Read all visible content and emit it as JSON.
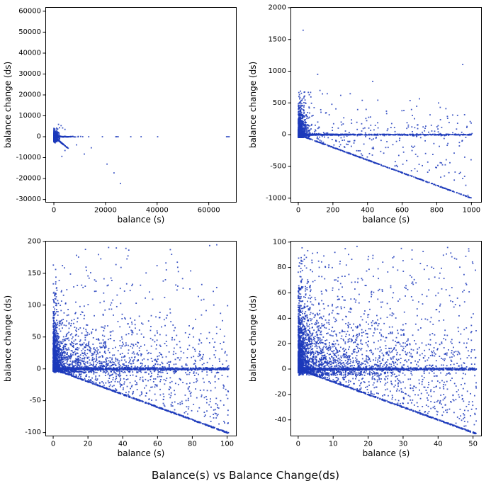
{
  "figure": {
    "suptitle": "Balance(s) vs Balance Change(ds)",
    "background": "#ffffff",
    "point_color": "#1c39bb",
    "axis_color": "#000000"
  },
  "chart_data": [
    {
      "id": "top-left",
      "type": "scatter",
      "title": "",
      "xlabel": "balance (s)",
      "ylabel": "balance change (ds)",
      "xlim": [
        -3300,
        70800
      ],
      "ylim": [
        -31500,
        62000
      ],
      "xticks": [
        0,
        20000,
        40000,
        60000
      ],
      "xtick_labels": [
        "0",
        "20000",
        "40000",
        "60000"
      ],
      "yticks": [
        -30000,
        -20000,
        -10000,
        0,
        10000,
        20000,
        30000,
        40000,
        50000,
        60000
      ],
      "ytick_labels": [
        "-30000",
        "-20000",
        "-10000",
        "0",
        "10000",
        "20000",
        "30000",
        "40000",
        "50000",
        "60000"
      ],
      "summary": "dense blob near origin; horizontal band at y=0 out to x=40000 plus isolated point near x=67000; short lower-bound ray y=-x to x=5500; scattered negative outliers down to (26000,-22000)",
      "generators": [
        {
          "kind": "blob",
          "seed": 11,
          "n": 520,
          "x": {
            "type": "exp",
            "scale": 450,
            "max": 2400
          },
          "y": {
            "type": "tri",
            "center": 0,
            "half": 2600
          }
        },
        {
          "kind": "blob",
          "seed": 12,
          "n": 70,
          "x": {
            "type": "exp",
            "scale": 350,
            "max": 1800
          },
          "y": {
            "type": "tri",
            "center": 600,
            "half": 4200
          }
        },
        {
          "kind": "diag",
          "seed": 13,
          "n": 230,
          "slope": -1,
          "jitter": 70,
          "x": {
            "type": "exp",
            "scale": 1900,
            "max": 5600
          }
        },
        {
          "kind": "hline",
          "seed": 14,
          "n": 190,
          "y": 0,
          "jitter": 130,
          "x": {
            "type": "exp",
            "scale": 2600,
            "max": 40500
          }
        },
        {
          "kind": "points",
          "pts": [
            [
              13500,
              0
            ],
            [
              18800,
              0
            ],
            [
              24000,
              0
            ],
            [
              24400,
              0
            ],
            [
              24900,
              0
            ],
            [
              29800,
              0
            ],
            [
              33800,
              0
            ],
            [
              40200,
              0
            ],
            [
              66900,
              0
            ],
            [
              67400,
              0
            ],
            [
              67900,
              0
            ]
          ]
        },
        {
          "kind": "points",
          "pts": [
            [
              900,
              2900
            ],
            [
              1500,
              3700
            ],
            [
              2200,
              4300
            ],
            [
              2800,
              5300
            ],
            [
              1800,
              5900
            ],
            [
              3400,
              4200
            ],
            [
              4300,
              3500
            ]
          ]
        },
        {
          "kind": "points",
          "pts": [
            [
              11800,
              -8300
            ],
            [
              23300,
              -17300
            ],
            [
              25800,
              -22400
            ],
            [
              20600,
              -13100
            ],
            [
              4300,
              -6600
            ],
            [
              8800,
              -3900
            ],
            [
              3100,
              -9400
            ],
            [
              14500,
              -5300
            ]
          ]
        }
      ]
    },
    {
      "id": "top-right",
      "type": "scatter",
      "title": "",
      "xlabel": "balance (s)",
      "ylabel": "balance change (ds)",
      "xlim": [
        -45,
        1060
      ],
      "ylim": [
        -1070,
        2010
      ],
      "xticks": [
        0,
        200,
        400,
        600,
        800,
        1000
      ],
      "xtick_labels": [
        "0",
        "200",
        "400",
        "600",
        "800",
        "1000"
      ],
      "yticks": [
        -1000,
        -500,
        0,
        500,
        1000,
        1500,
        2000
      ],
      "ytick_labels": [
        "-1000",
        "-500",
        "0",
        "500",
        "1000",
        "1500",
        "2000"
      ],
      "summary": "dense column near x=0 spanning y -50..500; horizontal band at y=0 across 0..1000; dotted lower-bound line y=-x to (1000,-1000); sparse scatter above with outliers near (30,1650) and (950,1100)",
      "generators": [
        {
          "kind": "blob",
          "seed": 21,
          "n": 950,
          "x": {
            "type": "exp",
            "scale": 16,
            "max": 130
          },
          "y": {
            "type": "exp",
            "scale": 115,
            "min": -45,
            "max": 520
          }
        },
        {
          "kind": "blob",
          "seed": 22,
          "n": 60,
          "x": {
            "type": "exp",
            "scale": 40,
            "max": 260
          },
          "y": {
            "type": "uniform",
            "min": 280,
            "max": 700
          }
        },
        {
          "kind": "hline",
          "seed": 23,
          "n": 380,
          "y": 0,
          "jitter": 8,
          "x": {
            "type": "exp",
            "scale": 130,
            "max": 1005
          }
        },
        {
          "kind": "hline",
          "seed": 24,
          "n": 380,
          "y": 0,
          "jitter": 8,
          "x": {
            "type": "uniform",
            "min": 0,
            "max": 1005
          }
        },
        {
          "kind": "diag",
          "seed": 25,
          "n": 400,
          "slope": -1,
          "jitter": 5,
          "x": {
            "type": "uniform",
            "min": 4,
            "max": 1005
          }
        },
        {
          "kind": "fan",
          "seed": 26,
          "n": 130,
          "scale": 0.9,
          "x": {
            "type": "uniform",
            "min": 10,
            "max": 1000
          }
        },
        {
          "kind": "blob",
          "seed": 27,
          "n": 140,
          "x": {
            "type": "uniform",
            "min": 15,
            "max": 1005
          },
          "y": {
            "type": "exp",
            "scale": 190,
            "min": -20,
            "max": 640
          }
        },
        {
          "kind": "points",
          "pts": [
            [
              28,
              1645
            ],
            [
              950,
              1105
            ],
            [
              112,
              950
            ],
            [
              430,
              838
            ],
            [
              300,
              645
            ],
            [
              700,
              565
            ],
            [
              820,
              430
            ],
            [
              610,
              380
            ],
            [
              980,
              -955
            ]
          ]
        }
      ]
    },
    {
      "id": "bottom-left",
      "type": "scatter",
      "title": "",
      "xlabel": "balance (s)",
      "ylabel": "balance change (ds)",
      "xlim": [
        -4.5,
        105.5
      ],
      "ylim": [
        -106,
        201
      ],
      "xticks": [
        0,
        20,
        40,
        60,
        80,
        100
      ],
      "xtick_labels": [
        "0",
        "20",
        "40",
        "60",
        "80",
        "100"
      ],
      "yticks": [
        -100,
        -50,
        0,
        50,
        100,
        150,
        200
      ],
      "ytick_labels": [
        "-100",
        "-50",
        "0",
        "50",
        "100",
        "150",
        "200"
      ],
      "summary": "very dense cluster at x 0..5; dense horizontal band at y=0 across 0..100; solid lower-bound line y=-x to (100,-100); broad scatter 0..100 thinning upward to ~190; sparse fill between y=0 and y=-x",
      "generators": [
        {
          "kind": "blob",
          "seed": 31,
          "n": 900,
          "x": {
            "type": "exp",
            "scale": 1.3,
            "max": 7
          },
          "y": {
            "type": "exp",
            "scale": 30,
            "min": -4,
            "max": 195
          }
        },
        {
          "kind": "blob",
          "seed": 32,
          "n": 1000,
          "x": {
            "type": "exp",
            "scale": 26,
            "max": 101
          },
          "y": {
            "type": "exp",
            "scale": 27,
            "min": -6,
            "max": 185
          }
        },
        {
          "kind": "blob",
          "seed": 33,
          "n": 260,
          "x": {
            "type": "uniform",
            "min": 0,
            "max": 101
          },
          "y": {
            "type": "exp",
            "scale": 45,
            "min": 0,
            "max": 190
          }
        },
        {
          "kind": "blob",
          "seed": 34,
          "n": 42,
          "x": {
            "type": "uniform",
            "min": 0,
            "max": 101
          },
          "y": {
            "type": "uniform",
            "min": 100,
            "max": 195
          }
        },
        {
          "kind": "hline",
          "seed": 35,
          "n": 650,
          "y": 0,
          "jitter": 1.7,
          "x": {
            "type": "uniform",
            "min": 0,
            "max": 101
          }
        },
        {
          "kind": "hline",
          "seed": 36,
          "n": 300,
          "y": 0,
          "jitter": 1.7,
          "x": {
            "type": "exp",
            "scale": 22,
            "max": 101
          }
        },
        {
          "kind": "diag",
          "seed": 37,
          "n": 520,
          "slope": -1,
          "jitter": 0.9,
          "x": {
            "type": "uniform",
            "min": 0.5,
            "max": 101
          }
        },
        {
          "kind": "fan",
          "seed": 38,
          "n": 390,
          "scale": 0.95,
          "x": {
            "type": "uniform",
            "min": 1,
            "max": 101
          }
        }
      ]
    },
    {
      "id": "bottom-right",
      "type": "scatter",
      "title": "",
      "xlabel": "balance (s)",
      "ylabel": "balance change (ds)",
      "xlim": [
        -2.2,
        52.5
      ],
      "ylim": [
        -53,
        101
      ],
      "xticks": [
        0,
        10,
        20,
        30,
        40,
        50
      ],
      "xtick_labels": [
        "0",
        "10",
        "20",
        "30",
        "40",
        "50"
      ],
      "yticks": [
        -40,
        -20,
        0,
        20,
        40,
        60,
        80,
        100
      ],
      "ytick_labels": [
        "-40",
        "-20",
        "0",
        "20",
        "40",
        "60",
        "80",
        "100"
      ],
      "summary": "densest panel: heavy cluster at x 0..3; dense horizontal band at y=0 across 0..50; solid lower-bound line y=-x to (50,-50); broad scatter up to ~95 thinning upward",
      "generators": [
        {
          "kind": "blob",
          "seed": 41,
          "n": 1000,
          "x": {
            "type": "exp",
            "scale": 0.9,
            "max": 4.5
          },
          "y": {
            "type": "exp",
            "scale": 19,
            "min": -3,
            "max": 96
          }
        },
        {
          "kind": "blob",
          "seed": 42,
          "n": 1400,
          "x": {
            "type": "exp",
            "scale": 12,
            "max": 51
          },
          "y": {
            "type": "exp",
            "scale": 21,
            "min": -5,
            "max": 95
          }
        },
        {
          "kind": "blob",
          "seed": 43,
          "n": 380,
          "x": {
            "type": "uniform",
            "min": 0,
            "max": 51
          },
          "y": {
            "type": "exp",
            "scale": 30,
            "min": 0,
            "max": 96
          }
        },
        {
          "kind": "blob",
          "seed": 44,
          "n": 70,
          "x": {
            "type": "uniform",
            "min": 0,
            "max": 51
          },
          "y": {
            "type": "uniform",
            "min": 55,
            "max": 97
          }
        },
        {
          "kind": "hline",
          "seed": 45,
          "n": 600,
          "y": 0,
          "jitter": 0.9,
          "x": {
            "type": "uniform",
            "min": 0,
            "max": 51
          }
        },
        {
          "kind": "hline",
          "seed": 46,
          "n": 260,
          "y": 0,
          "jitter": 0.9,
          "x": {
            "type": "exp",
            "scale": 11,
            "max": 51
          }
        },
        {
          "kind": "diag",
          "seed": 47,
          "n": 500,
          "slope": -1,
          "jitter": 0.45,
          "x": {
            "type": "uniform",
            "min": 0.3,
            "max": 51
          }
        },
        {
          "kind": "fan",
          "seed": 48,
          "n": 430,
          "scale": 0.95,
          "x": {
            "type": "uniform",
            "min": 0.5,
            "max": 51
          }
        }
      ]
    }
  ]
}
